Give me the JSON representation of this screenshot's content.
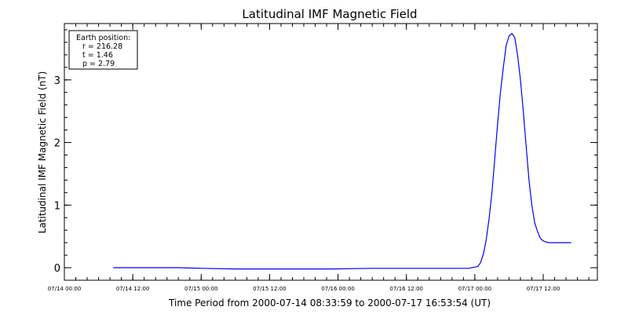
{
  "chart_data": {
    "type": "line",
    "title": "Latitudinal IMF Magnetic Field",
    "xlabel": "Time Period from 2000-07-14 08:33:59 to 2000-07-17 16:53:54 (UT)",
    "ylabel": "Latitudinal IMF Magnetic Field (nT)",
    "xlim": [
      "2000-07-14 00:00",
      "2000-07-17 21:30"
    ],
    "ylim": [
      -0.2,
      3.9
    ],
    "x_ticks": [
      "07/14 00:00",
      "07/14 12:00",
      "07/15 00:00",
      "07/15 12:00",
      "07/16 00:00",
      "07/16 12:00",
      "07/17 00:00",
      "07/17 12:00"
    ],
    "y_ticks": [
      0,
      1,
      2,
      3
    ],
    "line_color": "#0000ff",
    "legend": {
      "placement": "top-left",
      "lines": [
        "Earth position:",
        "r = 216.28",
        "t = 1.46",
        "p = 2.79"
      ]
    },
    "series": [
      {
        "x": [
          "2000-07-14 08:34",
          "2000-07-14 20:00",
          "2000-07-15 00:00",
          "2000-07-15 06:00",
          "2000-07-15 12:00",
          "2000-07-15 18:00",
          "2000-07-15 23:00",
          "2000-07-16 06:00",
          "2000-07-16 12:00",
          "2000-07-16 18:00",
          "2000-07-16 23:00",
          "2000-07-17 00:30",
          "2000-07-17 01:00",
          "2000-07-17 01:30",
          "2000-07-17 02:00",
          "2000-07-17 02:30",
          "2000-07-17 03:00",
          "2000-07-17 03:30",
          "2000-07-17 04:00",
          "2000-07-17 04:30",
          "2000-07-17 05:00",
          "2000-07-17 05:30",
          "2000-07-17 06:00",
          "2000-07-17 06:30",
          "2000-07-17 07:00",
          "2000-07-17 07:30",
          "2000-07-17 08:00",
          "2000-07-17 08:30",
          "2000-07-17 09:00",
          "2000-07-17 09:30",
          "2000-07-17 10:00",
          "2000-07-17 10:30",
          "2000-07-17 11:00",
          "2000-07-17 11:30",
          "2000-07-17 12:00",
          "2000-07-17 12:30",
          "2000-07-17 13:00",
          "2000-07-17 14:00",
          "2000-07-17 15:00",
          "2000-07-17 16:54"
        ],
        "y": [
          0.0,
          0.0,
          -0.01,
          -0.02,
          -0.02,
          -0.02,
          -0.02,
          -0.01,
          -0.01,
          -0.01,
          -0.01,
          0.02,
          0.08,
          0.22,
          0.45,
          0.78,
          1.2,
          1.75,
          2.3,
          2.8,
          3.2,
          3.55,
          3.7,
          3.74,
          3.68,
          3.4,
          3.0,
          2.5,
          1.95,
          1.4,
          1.0,
          0.72,
          0.58,
          0.47,
          0.43,
          0.41,
          0.4,
          0.4,
          0.4,
          0.4
        ]
      }
    ]
  }
}
